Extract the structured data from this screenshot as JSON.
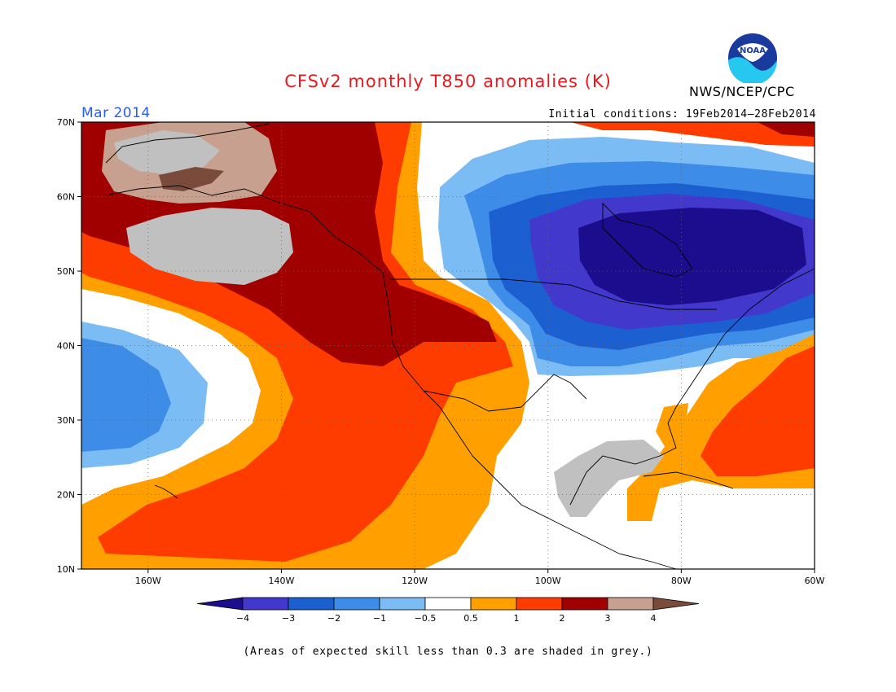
{
  "header": {
    "title": "CFSv2 monthly T850 anomalies (K)",
    "agency": "NWS/NCEP/CPC",
    "month": "Mar 2014",
    "initial_conditions": "Initial conditions: 19Feb2014–28Feb2014",
    "logo_text": "NOAA"
  },
  "map": {
    "lon_range": [
      -170,
      -60
    ],
    "lat_range": [
      10,
      70
    ],
    "lon_ticks": [
      {
        "value": -160,
        "label": "160W"
      },
      {
        "value": -140,
        "label": "140W"
      },
      {
        "value": -120,
        "label": "120W"
      },
      {
        "value": -100,
        "label": "100W"
      },
      {
        "value": -80,
        "label": "80W"
      },
      {
        "value": -60,
        "label": "60W"
      }
    ],
    "lat_ticks": [
      {
        "value": 70,
        "label": "70N"
      },
      {
        "value": 60,
        "label": "60N"
      },
      {
        "value": 50,
        "label": "50N"
      },
      {
        "value": 40,
        "label": "40N"
      },
      {
        "value": 30,
        "label": "30N"
      },
      {
        "value": 20,
        "label": "20N"
      },
      {
        "value": 10,
        "label": "10N"
      }
    ],
    "grid_lines": "dotted"
  },
  "colorbar": {
    "ticks": [
      "−4",
      "−3",
      "−2",
      "−1",
      "−0.5",
      "0.5",
      "1",
      "2",
      "3",
      "4"
    ],
    "colors": [
      "#1c0d8f",
      "#4338cc",
      "#1b5fd1",
      "#3d8de8",
      "#7bbcf5",
      "#ffffff",
      "#ffa000",
      "#ff3c00",
      "#a00000",
      "#c8a090",
      "#7a4a3a"
    ]
  },
  "footnote": "(Areas of expected skill less than 0.3 are shaded in grey.)"
}
